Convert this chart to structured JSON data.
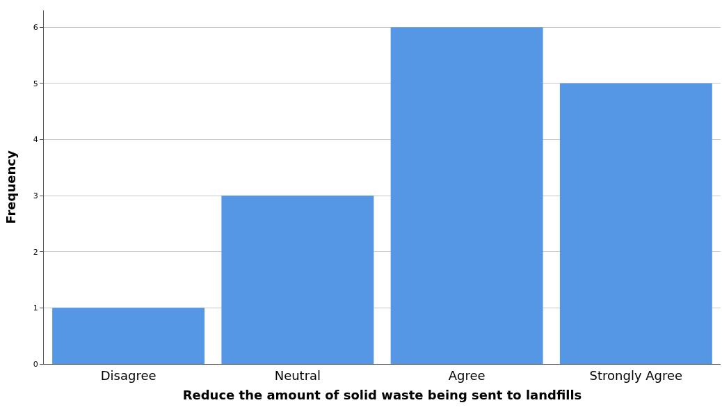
{
  "chart_data": {
    "type": "bar",
    "xlabel": "Reduce the amount of solid waste being sent to landfills",
    "ylabel": "Frequency",
    "categories": [
      "Disagree",
      "Neutral",
      "Agree",
      "Strongly Agree"
    ],
    "values": [
      1,
      3,
      6,
      5
    ],
    "color": "#5596e5",
    "ylim": [
      0,
      6.3
    ],
    "yticks": [
      0,
      1,
      2,
      3,
      4,
      5,
      6
    ],
    "grid": "y"
  }
}
